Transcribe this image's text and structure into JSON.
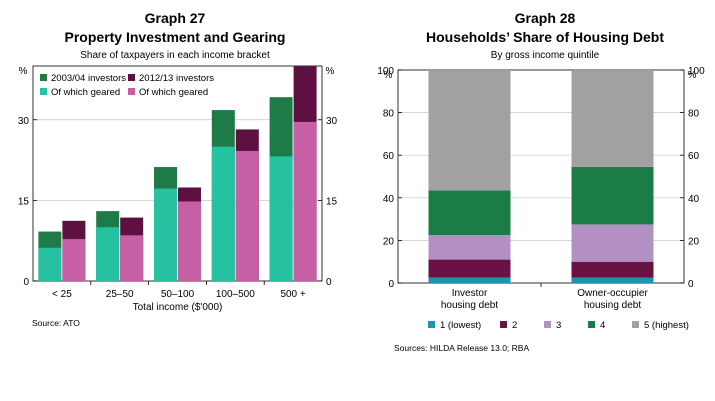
{
  "graph27": {
    "number": "Graph 27",
    "title": "Property Investment and Gearing",
    "subtitle": "Share of taxpayers in each income bracket",
    "xlabel": "Total income ($'000)",
    "unit": "%",
    "source": "Source:    ATO"
  },
  "graph28": {
    "number": "Graph 28",
    "title": "Households’ Share of Housing Debt",
    "subtitle": "By gross income quintile",
    "unit": "%",
    "source": "Sources:  HILDA Release 13.0; RBA"
  },
  "colors": {
    "investors_2003": "#1e7a47",
    "geared_2003": "#25c1a0",
    "investors_2012": "#5e1040",
    "geared_2012": "#c65fa5",
    "q1": "#1f93b3",
    "q2": "#6b1245",
    "q3": "#b290c4",
    "q4": "#1b7c46",
    "q5": "#a1a1a1"
  },
  "chart_data": [
    {
      "type": "bar",
      "title": "Property Investment and Gearing",
      "subtitle": "Share of taxpayers in each income bracket",
      "xlabel": "Total income ($'000)",
      "ylabel": "%",
      "ylim": [
        0,
        40
      ],
      "yticks": [
        0,
        15,
        30
      ],
      "categories": [
        "< 25",
        "25–50",
        "50–100",
        "100–500",
        "500 +"
      ],
      "legend_position": "top-left",
      "series": [
        {
          "name": "2003/04 investors",
          "values": [
            9.2,
            13.0,
            21.2,
            31.8,
            34.2
          ]
        },
        {
          "name": "Of which geared",
          "values": [
            6.2,
            10.0,
            17.2,
            25.0,
            23.2
          ]
        },
        {
          "name": "2012/13 investors",
          "values": [
            11.2,
            11.8,
            17.4,
            28.2,
            40.0
          ]
        },
        {
          "name": "Of which geared",
          "values": [
            7.8,
            8.5,
            14.8,
            24.2,
            29.6
          ]
        }
      ]
    },
    {
      "type": "bar",
      "stacked": true,
      "title": "Households’ Share of Housing Debt",
      "subtitle": "By gross income quintile",
      "ylabel": "%",
      "ylim": [
        0,
        100
      ],
      "yticks": [
        0,
        20,
        40,
        60,
        80,
        100
      ],
      "categories": [
        "Investor\nhousing debt",
        "Owner-occupier\nhousing debt"
      ],
      "legend_position": "bottom",
      "series": [
        {
          "name": "1 (lowest)",
          "values": [
            2.5,
            2.5
          ]
        },
        {
          "name": "2",
          "values": [
            8.5,
            7.5
          ]
        },
        {
          "name": "3",
          "values": [
            11.5,
            17.5
          ]
        },
        {
          "name": "4",
          "values": [
            21.0,
            27.0
          ]
        },
        {
          "name": "5 (highest)",
          "values": [
            56.5,
            45.5
          ]
        }
      ]
    }
  ]
}
